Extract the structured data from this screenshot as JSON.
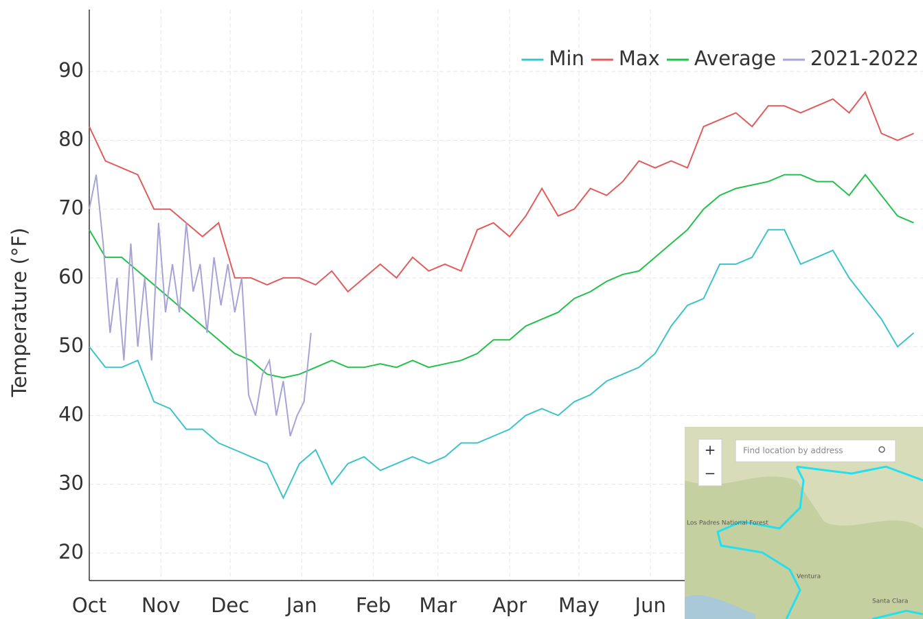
{
  "chart_data": {
    "type": "line",
    "ylabel": "Temperature (°F)",
    "x": [
      0,
      7,
      14,
      21,
      28,
      35,
      42,
      49,
      56,
      63,
      70,
      77,
      84,
      91,
      98,
      105,
      112,
      119,
      126,
      133,
      140,
      147,
      154,
      161,
      168,
      175,
      182,
      189,
      196,
      203,
      210,
      217,
      224,
      231,
      238,
      245,
      252,
      259,
      266,
      273,
      280,
      287,
      294,
      301,
      308,
      315,
      322,
      329,
      336,
      343,
      350,
      357
    ],
    "xlim": [
      0,
      361
    ],
    "xticks": [
      {
        "value": 0,
        "label": "Oct"
      },
      {
        "value": 31,
        "label": "Nov"
      },
      {
        "value": 61,
        "label": "Dec"
      },
      {
        "value": 92,
        "label": "Jan"
      },
      {
        "value": 123,
        "label": "Feb"
      },
      {
        "value": 151,
        "label": "Mar"
      },
      {
        "value": 182,
        "label": "Apr"
      },
      {
        "value": 212,
        "label": "May"
      },
      {
        "value": 243,
        "label": "Jun"
      }
    ],
    "ylim": [
      16,
      99
    ],
    "yticks": [
      20,
      30,
      40,
      50,
      60,
      70,
      80,
      90
    ],
    "grid": true,
    "legend": "top-right",
    "series": [
      {
        "name": "Min",
        "color": "#3cc3c8",
        "values": [
          50,
          47,
          47,
          48,
          42,
          41,
          38,
          38,
          36,
          35,
          34,
          33,
          28,
          33,
          35,
          30,
          33,
          34,
          32,
          33,
          34,
          33,
          34,
          36,
          36,
          37,
          38,
          40,
          41,
          40,
          42,
          43,
          45,
          46,
          47,
          49,
          53,
          56,
          57,
          62,
          62,
          63,
          67,
          67,
          62,
          63,
          64,
          60,
          57,
          54,
          50,
          52
        ]
      },
      {
        "name": "Max",
        "color": "#e05c5c",
        "values": [
          82,
          77,
          76,
          75,
          70,
          70,
          68,
          66,
          68,
          60,
          60,
          59,
          60,
          60,
          59,
          61,
          58,
          60,
          62,
          60,
          63,
          61,
          62,
          61,
          67,
          68,
          66,
          69,
          73,
          69,
          70,
          73,
          72,
          74,
          77,
          76,
          77,
          76,
          82,
          83,
          84,
          82,
          85,
          85,
          84,
          85,
          86,
          84,
          87,
          81,
          80,
          81
        ]
      },
      {
        "name": "Average",
        "color": "#22c04a",
        "values": [
          67,
          63,
          63,
          61,
          59,
          57,
          55,
          53,
          51,
          49,
          48,
          46,
          45.5,
          46,
          47,
          48,
          47,
          47,
          47.5,
          47,
          48,
          47,
          47.5,
          48,
          49,
          51,
          51,
          53,
          54,
          55,
          57,
          58,
          59.5,
          60.5,
          61,
          63,
          65,
          67,
          70,
          72,
          73,
          73.5,
          74,
          75,
          75,
          74,
          74,
          72,
          75,
          72,
          69,
          68
        ]
      },
      {
        "name": "2021-2022",
        "color": "#a7a3d6",
        "x": [
          0,
          3,
          6,
          9,
          12,
          15,
          18,
          21,
          24,
          27,
          30,
          33,
          36,
          39,
          42,
          45,
          48,
          51,
          54,
          57,
          60,
          63,
          66,
          69,
          72,
          75,
          78,
          81,
          84,
          87,
          90,
          93,
          96
        ],
        "values": [
          70,
          75,
          65,
          52,
          60,
          48,
          65,
          50,
          60,
          48,
          68,
          55,
          62,
          55,
          68,
          58,
          62,
          52,
          63,
          56,
          62,
          55,
          60,
          43,
          40,
          46,
          48,
          40,
          45,
          37,
          40,
          42,
          52
        ]
      }
    ]
  },
  "map": {
    "zoom_in": "+",
    "zoom_out": "−",
    "search": "Find location by address",
    "forest": "Los Padres National Forest",
    "place1": "Santa Clara",
    "place2": "Ventura"
  }
}
